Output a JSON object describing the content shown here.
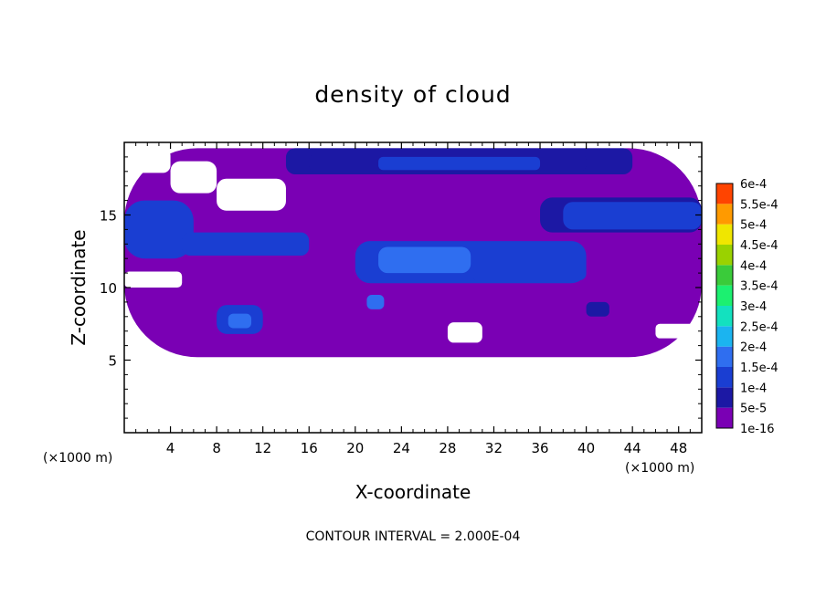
{
  "chart_data": {
    "type": "heatmap",
    "title": "density of cloud",
    "xlabel": "X-coordinate",
    "ylabel": "Z-coordinate",
    "x_unit": "(×1000 m)",
    "y_unit": "(×1000 m)",
    "xlim": [
      0,
      50
    ],
    "ylim": [
      0,
      20
    ],
    "x_ticks": [
      4,
      8,
      12,
      16,
      20,
      24,
      28,
      32,
      36,
      40,
      44,
      48
    ],
    "y_ticks": [
      5,
      10,
      15
    ],
    "colorbar": {
      "levels": [
        "1e-16",
        "5e-5",
        "1e-4",
        "1.5e-4",
        "2e-4",
        "2.5e-4",
        "3e-4",
        "3.5e-4",
        "4e-4",
        "4.5e-4",
        "5e-4",
        "5.5e-4",
        "6e-4"
      ],
      "colors": [
        "#7a00b4",
        "#1c18a4",
        "#1a3ed2",
        "#2f6ef0",
        "#1bb4f0",
        "#13e1bf",
        "#1cf070",
        "#3acb3a",
        "#9ad200",
        "#f0e600",
        "#ff9a00",
        "#ff4400",
        "#ff2a20",
        "#ff8a8a"
      ]
    },
    "field_cells": [
      [
        5.2,
        19.6,
        0,
        50,
        0
      ],
      [
        17.8,
        19.6,
        14,
        44,
        1
      ],
      [
        18.0,
        19.2,
        16,
        40,
        1
      ],
      [
        18.1,
        19.0,
        22,
        36,
        2
      ],
      [
        12.0,
        16.0,
        0,
        6,
        2
      ],
      [
        12.5,
        15.6,
        0,
        4,
        2
      ],
      [
        13.8,
        16.2,
        36,
        50,
        1
      ],
      [
        14.0,
        15.9,
        38,
        50,
        2
      ],
      [
        12.2,
        13.8,
        5,
        16,
        2
      ],
      [
        10.3,
        13.2,
        20,
        40,
        2
      ],
      [
        11.0,
        12.8,
        22,
        30,
        3
      ],
      [
        10.5,
        11.8,
        30,
        40,
        2
      ],
      [
        8.5,
        9.5,
        21,
        22.5,
        3
      ],
      [
        6.8,
        8.8,
        8,
        12,
        2
      ],
      [
        7.2,
        8.2,
        9,
        11,
        3
      ],
      [
        8.0,
        9.0,
        40,
        42,
        1
      ]
    ],
    "missing_cells": [
      [
        17.9,
        19.6,
        0,
        4
      ],
      [
        16.5,
        18.7,
        4,
        8
      ],
      [
        15.3,
        17.5,
        8,
        14
      ],
      [
        10.0,
        11.1,
        0,
        5
      ],
      [
        6.2,
        7.6,
        28,
        31
      ],
      [
        6.5,
        7.5,
        46,
        50
      ],
      [
        0.0,
        5.2,
        0,
        50
      ]
    ],
    "contour_interval": "CONTOUR INTERVAL = 2.000E-04",
    "grid": false,
    "legend": "right colorbar"
  }
}
